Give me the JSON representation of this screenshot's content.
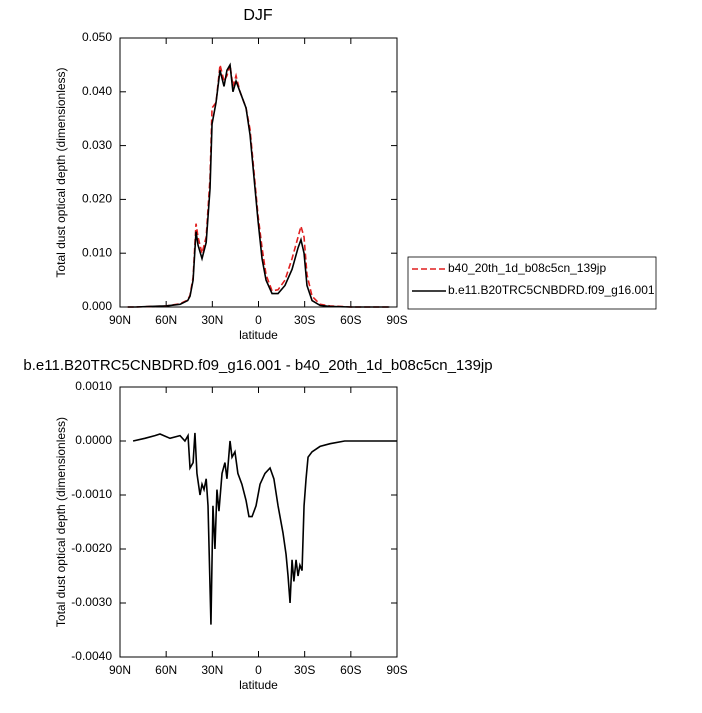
{
  "chart_data": [
    {
      "type": "line",
      "title": "DJF",
      "xlabel": "latitude",
      "ylabel": "Total dust optical depth (dimensionless)",
      "x": [
        85,
        80,
        70,
        60,
        51,
        46,
        44.5,
        42.5,
        40.6,
        39.3,
        36.7,
        34,
        31.5,
        30.2,
        27.6,
        25,
        22.4,
        20.5,
        18.5,
        16.6,
        14.6,
        12,
        8.1,
        5.5,
        2.9,
        0.3,
        -2.3,
        -4.9,
        -8.8,
        -12.7,
        -17.2,
        -21.8,
        -25.7,
        -27.6,
        -29.6,
        -31.5,
        -34.8,
        -40,
        -46.5,
        -60,
        -75,
        -85
      ],
      "series": [
        {
          "name": "b40_20th_1d_b08c5cn_139jp",
          "color": "#e01e1e",
          "linestyle": "dashed",
          "values": [
            0,
            0,
            0.0001,
            0.0002,
            0.0006,
            0.0013,
            0.0022,
            0.0055,
            0.0155,
            0.013,
            0.01,
            0.013,
            0.024,
            0.037,
            0.038,
            0.045,
            0.042,
            0.043,
            0.045,
            0.041,
            0.043,
            0.04,
            0.037,
            0.033,
            0.025,
            0.017,
            0.011,
            0.006,
            0.003,
            0.0032,
            0.005,
            0.009,
            0.013,
            0.015,
            0.013,
            0.006,
            0.002,
            0.0005,
            0.0002,
            0,
            0,
            0
          ]
        },
        {
          "name": "b.e11.B20TRC5CNBDRD.f09_g16.001",
          "color": "#000000",
          "linestyle": "solid",
          "values": [
            0,
            0,
            0.0001,
            0.0002,
            0.0005,
            0.0012,
            0.002,
            0.005,
            0.014,
            0.0115,
            0.009,
            0.012,
            0.022,
            0.034,
            0.038,
            0.044,
            0.041,
            0.044,
            0.045,
            0.04,
            0.042,
            0.04,
            0.037,
            0.032,
            0.024,
            0.016,
            0.009,
            0.005,
            0.0025,
            0.0025,
            0.004,
            0.007,
            0.011,
            0.0125,
            0.01,
            0.004,
            0.0012,
            0.0003,
            0.0001,
            0,
            0,
            0
          ]
        }
      ],
      "xlim": [
        90,
        -90
      ],
      "xticks": [
        {
          "value": 90,
          "label": "90N"
        },
        {
          "value": 60,
          "label": "60N"
        },
        {
          "value": 30,
          "label": "30N"
        },
        0,
        {
          "value": -30,
          "label": "30S"
        },
        {
          "value": -60,
          "label": "60S"
        },
        {
          "value": -90,
          "label": "90S"
        }
      ],
      "ylim": [
        0,
        0.05
      ],
      "yticks": [
        {
          "value": 0,
          "label": "0.000"
        },
        {
          "value": 0.01,
          "label": "0.010"
        },
        {
          "value": 0.02,
          "label": "0.020"
        },
        {
          "value": 0.03,
          "label": "0.030"
        },
        {
          "value": 0.04,
          "label": "0.040"
        },
        {
          "value": 0.05,
          "label": "0.050"
        }
      ],
      "legend": "outside-right"
    },
    {
      "type": "line",
      "title": "b.e11.B20TRC5CNBDRD.f09_g16.001 - b40_20th_1d_b08c5cn_139jp",
      "xlabel": "latitude",
      "ylabel": "Total dust optical depth (dimensionless)",
      "x": [
        81.5,
        73.8,
        67.3,
        64,
        57.5,
        51,
        47.8,
        45.8,
        44.5,
        42.5,
        41.3,
        40,
        38,
        36.7,
        35.4,
        34,
        32.8,
        30.9,
        29.6,
        28.3,
        27,
        25.7,
        23.7,
        21.8,
        20.5,
        18.5,
        17.2,
        15.3,
        13.4,
        10.8,
        8.1,
        6.2,
        4.2,
        1.6,
        -1,
        -4.2,
        -7.5,
        -10,
        -12.7,
        -15.9,
        -17.9,
        -19.2,
        -20.5,
        -21.8,
        -23,
        -24.4,
        -25.7,
        -26.9,
        -28.3,
        -29.6,
        -30.9,
        -32.2,
        -34.8,
        -40,
        -46.5,
        -56,
        -72,
        -90
      ],
      "color": "#000000",
      "values": [
        0,
        5e-05,
        0.0001,
        0.00013,
        5e-05,
        0.0001,
        0,
        0.0001,
        -0.0005,
        -0.0004,
        0.00015,
        -0.0006,
        -0.001,
        -0.0008,
        -0.0009,
        -0.0007,
        -0.0012,
        -0.0034,
        -0.0012,
        -0.002,
        -0.0009,
        -0.0013,
        -0.0006,
        -0.0004,
        -0.0007,
        0,
        -0.0003,
        -0.0002,
        -0.0006,
        -0.0008,
        -0.0011,
        -0.0014,
        -0.0014,
        -0.0012,
        -0.0008,
        -0.0006,
        -0.0005,
        -0.0007,
        -0.0012,
        -0.0017,
        -0.0021,
        -0.0025,
        -0.003,
        -0.0022,
        -0.0026,
        -0.0022,
        -0.0025,
        -0.0023,
        -0.0024,
        -0.0012,
        -0.0007,
        -0.0003,
        -0.0002,
        -0.0001,
        -5e-05,
        0,
        0,
        0
      ],
      "xlim": [
        90,
        -90
      ],
      "xticks": [
        {
          "value": 90,
          "label": "90N"
        },
        {
          "value": 60,
          "label": "60N"
        },
        {
          "value": 30,
          "label": "30N"
        },
        0,
        {
          "value": -30,
          "label": "30S"
        },
        {
          "value": -60,
          "label": "60S"
        },
        {
          "value": -90,
          "label": "90S"
        }
      ],
      "ylim": [
        -0.004,
        0.001
      ],
      "yticks": [
        {
          "value": 0.001,
          "label": "0.0010"
        },
        {
          "value": 0,
          "label": "0.0000"
        },
        {
          "value": -0.001,
          "label": "-0.0010"
        },
        {
          "value": -0.002,
          "label": "-0.0020"
        },
        {
          "value": -0.003,
          "label": "-0.0030"
        },
        {
          "value": -0.004,
          "label": "-0.0040"
        }
      ]
    }
  ]
}
